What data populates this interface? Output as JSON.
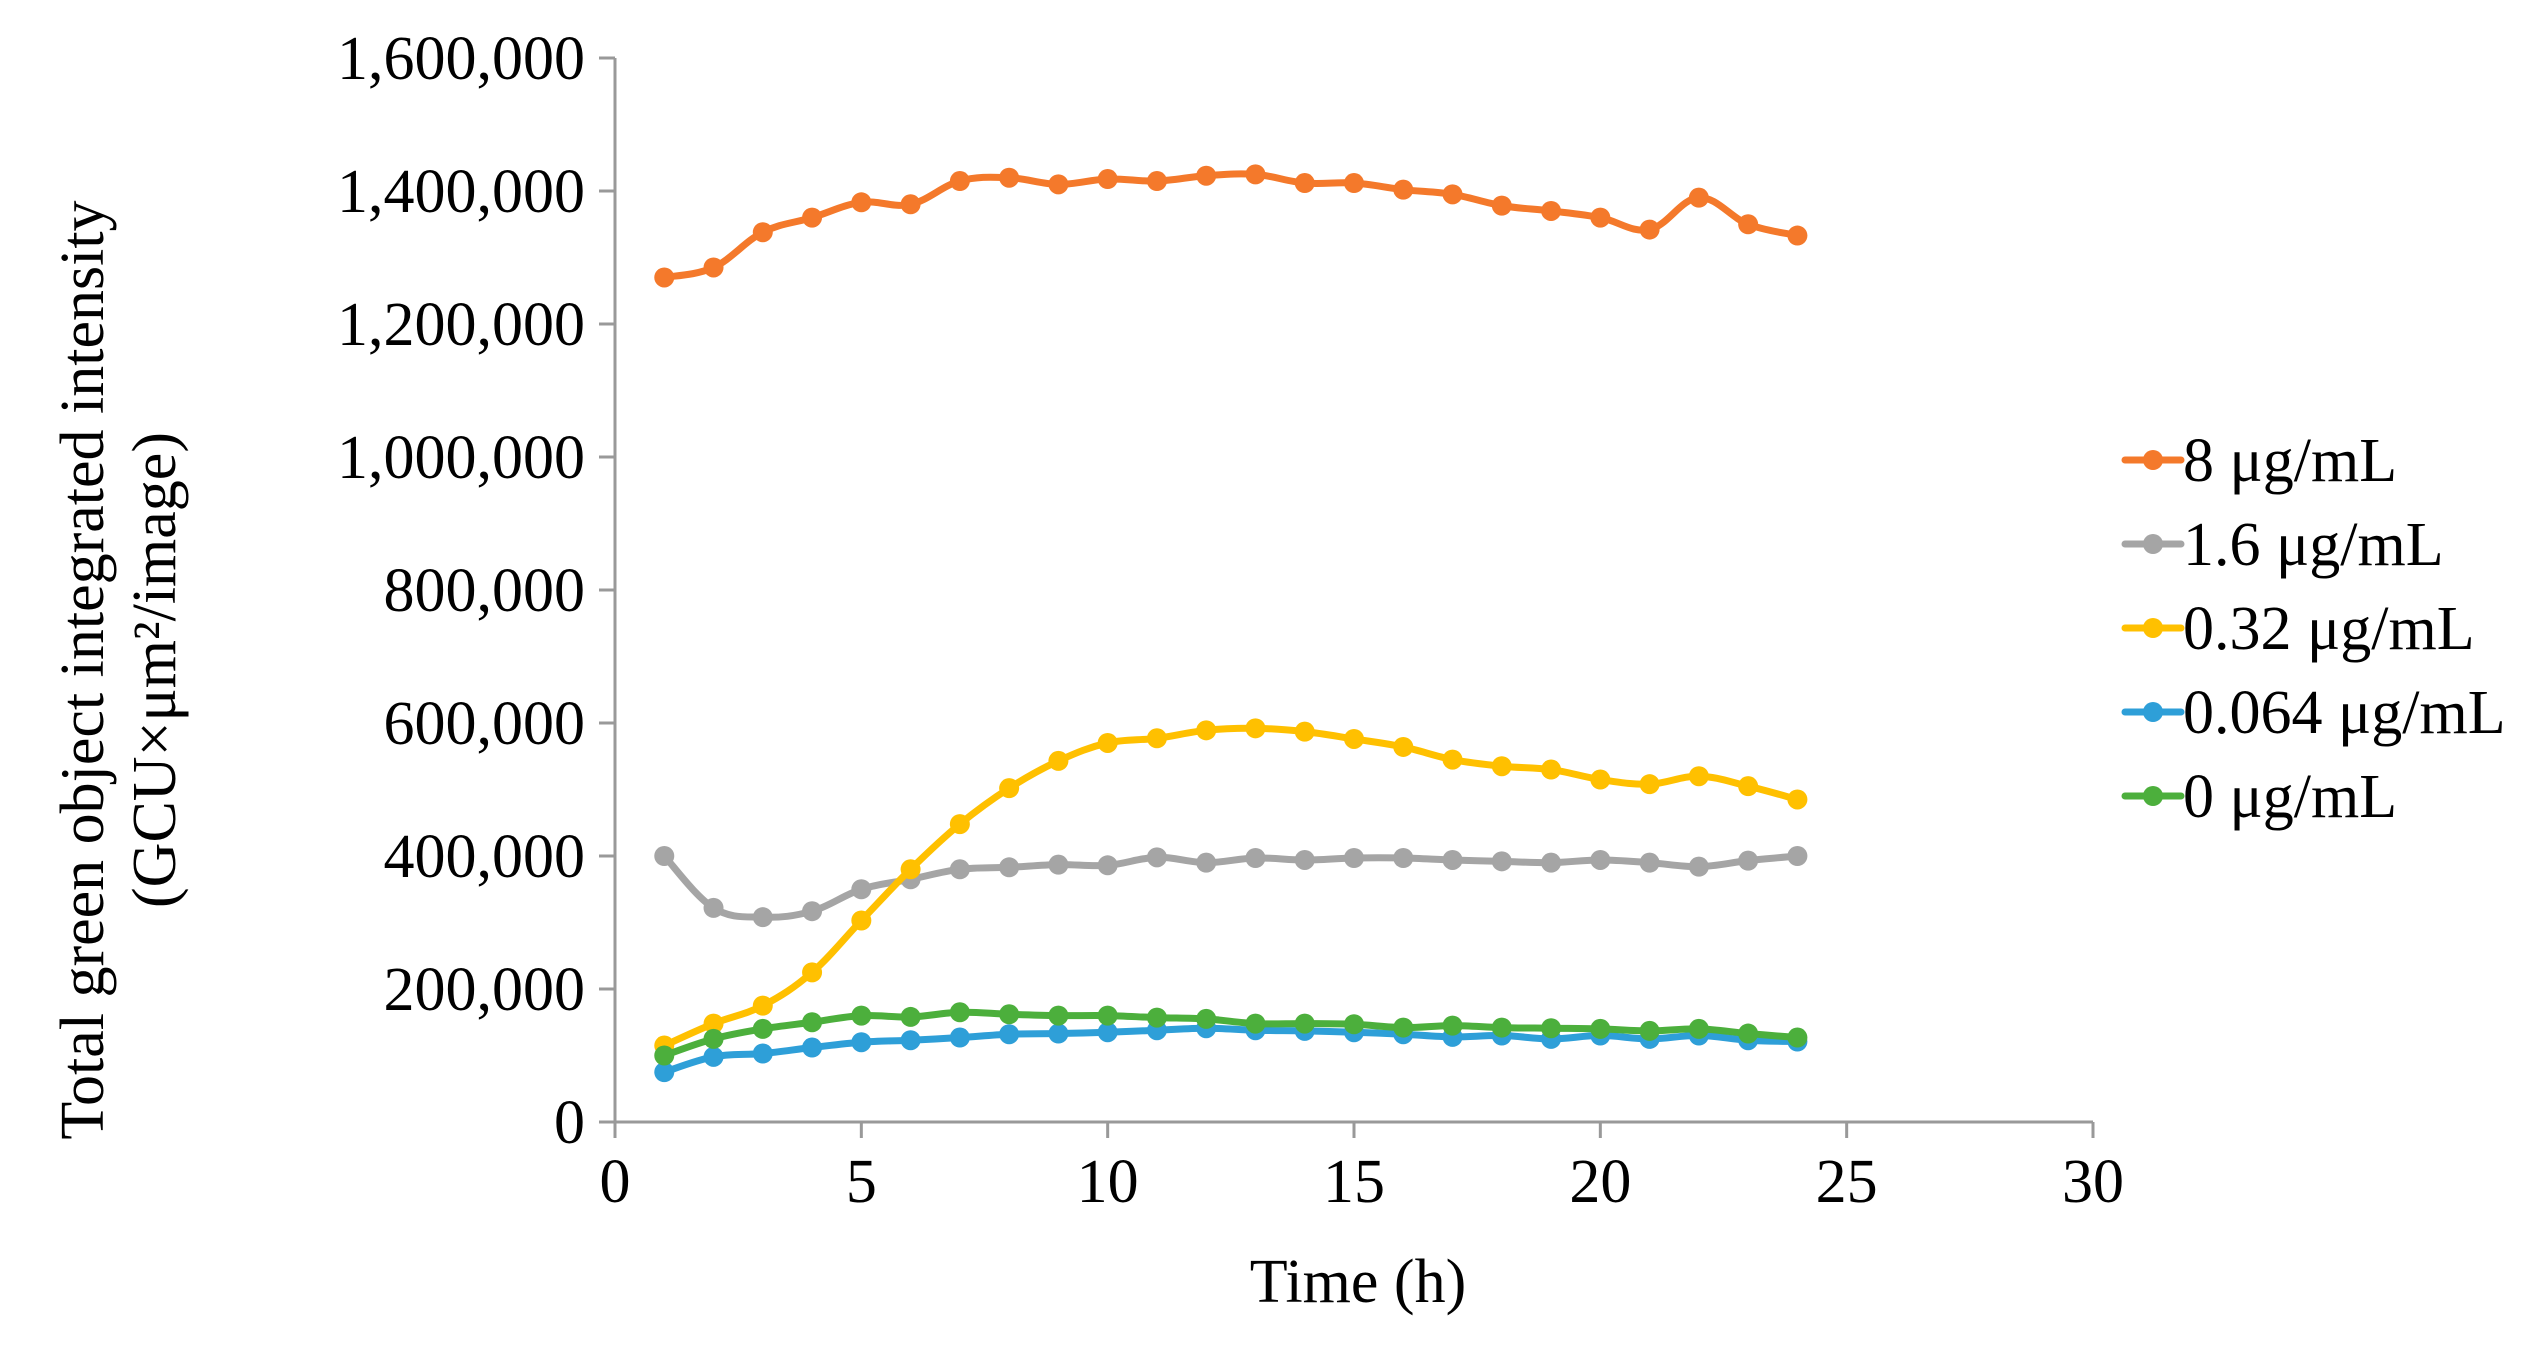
{
  "chart_data": {
    "type": "line",
    "title": "",
    "xlabel": "Time (h)",
    "ylabel_line1": "Total green object integrated intensity",
    "ylabel_line2": "(GCU×μm²/image)",
    "xlim": [
      0,
      30
    ],
    "ylim": [
      0,
      1600000
    ],
    "x_ticks": [
      0,
      5,
      10,
      15,
      20,
      25,
      30
    ],
    "x_tick_labels": [
      "0",
      "5",
      "10",
      "15",
      "20",
      "25",
      "30"
    ],
    "y_ticks": [
      0,
      200000,
      400000,
      600000,
      800000,
      1000000,
      1200000,
      1400000,
      1600000
    ],
    "y_tick_labels": [
      "0",
      "200,000",
      "400,000",
      "600,000",
      "800,000",
      "1,000,000",
      "1,200,000",
      "1,400,000",
      "1,600,000"
    ],
    "grid": false,
    "legend_position": "right",
    "x": [
      1,
      2,
      3,
      4,
      5,
      6,
      7,
      8,
      9,
      10,
      11,
      12,
      13,
      14,
      15,
      16,
      17,
      18,
      19,
      20,
      21,
      22,
      23,
      24
    ],
    "series": [
      {
        "name": "8 μg/mL",
        "color": "#F4792B",
        "values": [
          1270000,
          1285000,
          1338000,
          1360000,
          1383000,
          1380000,
          1415000,
          1420000,
          1410000,
          1418000,
          1415000,
          1423000,
          1425000,
          1412000,
          1412000,
          1402000,
          1395000,
          1378000,
          1370000,
          1360000,
          1342000,
          1390000,
          1350000,
          1333000
        ]
      },
      {
        "name": "1.6 μg/mL",
        "color": "#A5A5A5",
        "values": [
          400000,
          322000,
          308000,
          317000,
          350000,
          365000,
          380000,
          383000,
          387000,
          386000,
          398000,
          390000,
          397000,
          394000,
          397000,
          397000,
          394000,
          392000,
          390000,
          394000,
          390000,
          384000,
          393000,
          400000
        ]
      },
      {
        "name": "0.32 μg/mL",
        "color": "#FFC000",
        "values": [
          115000,
          148000,
          175000,
          225000,
          303000,
          380000,
          448000,
          502000,
          543000,
          570000,
          577000,
          589000,
          592000,
          587000,
          576000,
          564000,
          545000,
          535000,
          530000,
          515000,
          508000,
          520000,
          505000,
          485000
        ]
      },
      {
        "name": "0.064 μg/mL",
        "color": "#2E9FD8",
        "values": [
          75000,
          98000,
          103000,
          112000,
          120000,
          123000,
          127000,
          132000,
          133000,
          135000,
          138000,
          141000,
          138000,
          137000,
          135000,
          132000,
          128000,
          130000,
          125000,
          130000,
          125000,
          130000,
          123000,
          121000
        ]
      },
      {
        "name": "0 μg/mL",
        "color": "#4CAF3C",
        "values": [
          100000,
          125000,
          140000,
          150000,
          160000,
          158000,
          165000,
          162000,
          160000,
          160000,
          157000,
          155000,
          148000,
          148000,
          147000,
          142000,
          145000,
          142000,
          141000,
          140000,
          137000,
          140000,
          133000,
          127000
        ]
      }
    ]
  }
}
